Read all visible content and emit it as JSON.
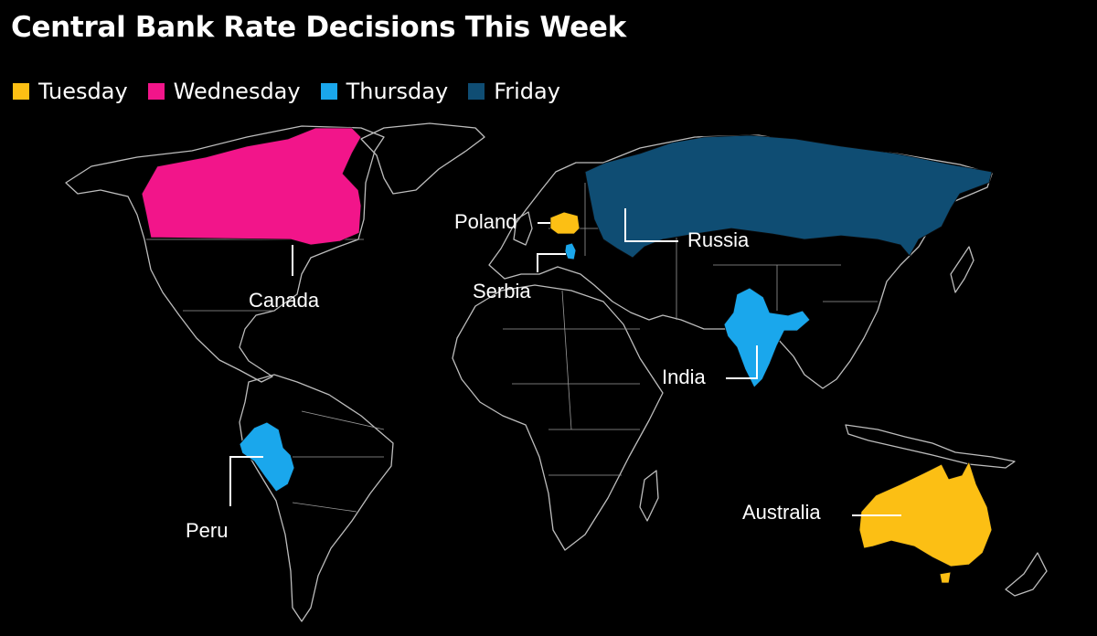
{
  "title": "Central Bank Rate Decisions This Week",
  "legend": [
    {
      "label": "Tuesday",
      "color": "#fcbf14"
    },
    {
      "label": "Wednesday",
      "color": "#f2158a"
    },
    {
      "label": "Thursday",
      "color": "#1aa7ec"
    },
    {
      "label": "Friday",
      "color": "#0f4d73"
    }
  ],
  "countries": [
    {
      "name": "Canada",
      "day": "Wednesday"
    },
    {
      "name": "Poland",
      "day": "Tuesday"
    },
    {
      "name": "Russia",
      "day": "Friday"
    },
    {
      "name": "Serbia",
      "day": "Thursday"
    },
    {
      "name": "India",
      "day": "Thursday"
    },
    {
      "name": "Peru",
      "day": "Thursday"
    },
    {
      "name": "Australia",
      "day": "Tuesday"
    }
  ]
}
